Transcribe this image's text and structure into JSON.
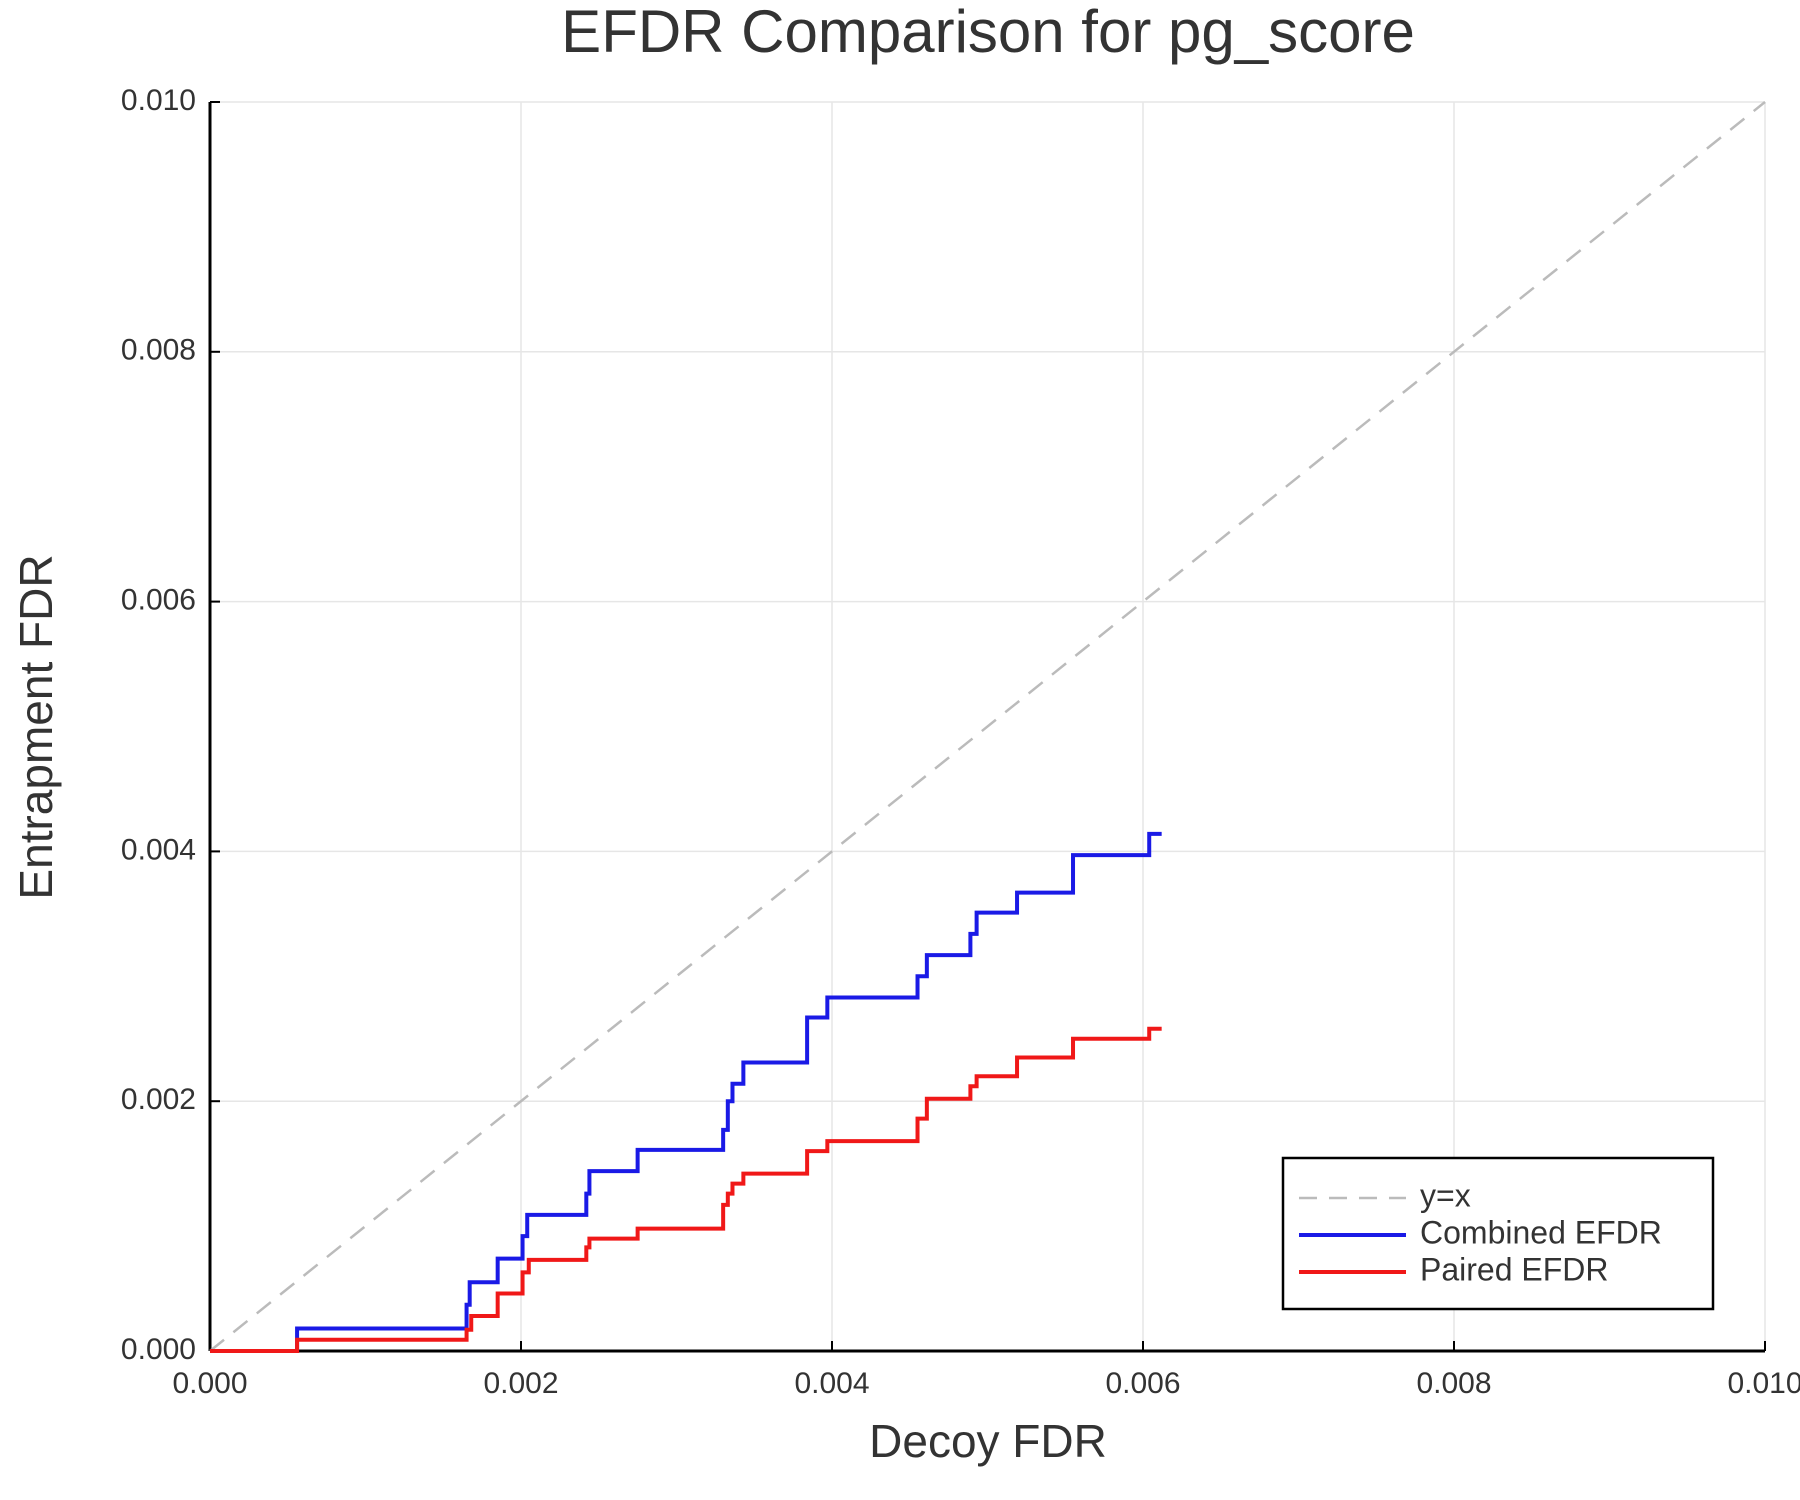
{
  "chart_data": {
    "type": "line",
    "title": "EFDR Comparison for pg_score",
    "x_label": "Decoy FDR",
    "y_label": "Entrapment FDR",
    "xlim": [
      0,
      0.01
    ],
    "ylim": [
      0,
      0.01
    ],
    "xticks": [
      {
        "value": 0,
        "label": "0.000"
      },
      {
        "value": 0.002,
        "label": "0.002"
      },
      {
        "value": 0.004,
        "label": "0.004"
      },
      {
        "value": 0.006,
        "label": "0.006"
      },
      {
        "value": 0.008,
        "label": "0.008"
      },
      {
        "value": 0.01,
        "label": "0.010"
      }
    ],
    "yticks": [
      {
        "value": 0,
        "label": "0.000"
      },
      {
        "value": 0.002,
        "label": "0.002"
      },
      {
        "value": 0.004,
        "label": "0.004"
      },
      {
        "value": 0.006,
        "label": "0.006"
      },
      {
        "value": 0.008,
        "label": "0.008"
      },
      {
        "value": 0.01,
        "label": "0.010"
      }
    ],
    "grid": true,
    "legend": "lower right",
    "series": [
      {
        "name": "y=x",
        "color": "#bbbbbb",
        "dashed": true,
        "x": [
          0,
          0.01
        ],
        "values": [
          0,
          0.01
        ]
      },
      {
        "name": "Combined EFDR",
        "color": "#1a1ae6",
        "dashed": false,
        "x": [
          0,
          0.00056,
          0.00056,
          0.00165,
          0.00165,
          0.00167,
          0.00167,
          0.00185,
          0.00185,
          0.00201,
          0.00201,
          0.00204,
          0.00204,
          0.00242,
          0.00242,
          0.00244,
          0.00244,
          0.00275,
          0.00275,
          0.0033,
          0.0033,
          0.00333,
          0.00333,
          0.00336,
          0.00336,
          0.00343,
          0.00343,
          0.00384,
          0.00384,
          0.00397,
          0.00397,
          0.00455,
          0.00455,
          0.00461,
          0.00461,
          0.00489,
          0.00489,
          0.00493,
          0.00493,
          0.00519,
          0.00519,
          0.00555,
          0.00555,
          0.00604,
          0.00604,
          0.00612
        ],
        "values": [
          0,
          0,
          0.00018,
          0.00018,
          0.00037,
          0.00037,
          0.00055,
          0.00055,
          0.00074,
          0.00074,
          0.00092,
          0.00092,
          0.00109,
          0.00109,
          0.00126,
          0.00126,
          0.00144,
          0.00144,
          0.00161,
          0.00161,
          0.00177,
          0.00177,
          0.002,
          0.002,
          0.00214,
          0.00214,
          0.00231,
          0.00231,
          0.00267,
          0.00267,
          0.00283,
          0.00283,
          0.003,
          0.003,
          0.00317,
          0.00317,
          0.00334,
          0.00334,
          0.00351,
          0.00351,
          0.00367,
          0.00367,
          0.00397,
          0.00397,
          0.00414,
          0.00414
        ]
      },
      {
        "name": "Paired EFDR",
        "color": "#f01818",
        "dashed": false,
        "x": [
          0,
          0.00056,
          0.00056,
          0.00165,
          0.00165,
          0.00168,
          0.00168,
          0.00185,
          0.00185,
          0.00201,
          0.00201,
          0.00205,
          0.00205,
          0.00242,
          0.00242,
          0.00244,
          0.00244,
          0.00275,
          0.00275,
          0.0033,
          0.0033,
          0.00333,
          0.00333,
          0.00336,
          0.00336,
          0.00343,
          0.00343,
          0.00384,
          0.00384,
          0.00397,
          0.00397,
          0.00455,
          0.00455,
          0.00461,
          0.00461,
          0.00489,
          0.00489,
          0.00493,
          0.00493,
          0.00519,
          0.00519,
          0.00555,
          0.00555,
          0.00604,
          0.00604,
          0.00612
        ],
        "values": [
          0,
          0,
          9e-05,
          9e-05,
          0.00017,
          0.00017,
          0.00028,
          0.00028,
          0.00046,
          0.00046,
          0.00063,
          0.00063,
          0.00073,
          0.00073,
          0.00083,
          0.00083,
          0.0009,
          0.0009,
          0.00098,
          0.00098,
          0.00117,
          0.00117,
          0.00126,
          0.00126,
          0.00134,
          0.00134,
          0.00142,
          0.00142,
          0.0016,
          0.0016,
          0.00168,
          0.00168,
          0.00186,
          0.00186,
          0.00202,
          0.00202,
          0.00212,
          0.00212,
          0.0022,
          0.0022,
          0.00235,
          0.00235,
          0.0025,
          0.0025,
          0.00258,
          0.00258
        ]
      }
    ]
  }
}
